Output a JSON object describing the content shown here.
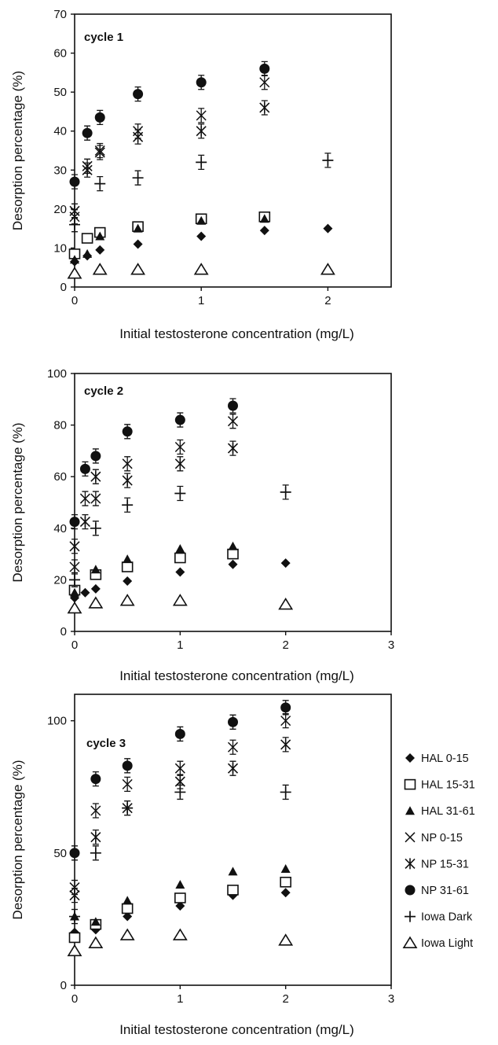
{
  "chart_data": [
    {
      "type": "scatter",
      "title": "cycle 1",
      "xlabel": "Initial testosterone concentration (mg/L)",
      "ylabel": "Desorption percentage (%)",
      "xlim": [
        0,
        2.5
      ],
      "ylim": [
        0,
        70
      ],
      "xticks": [
        0,
        1,
        2
      ],
      "yticks": [
        0,
        10,
        20,
        30,
        40,
        50,
        60,
        70
      ],
      "grid": false,
      "series": [
        {
          "name": "HAL 0-15",
          "x": [
            0,
            0.1,
            0.2,
            0.5,
            1,
            1.5,
            2
          ],
          "y": [
            6.5,
            8,
            9.5,
            11,
            13,
            14.5,
            15
          ]
        },
        {
          "name": "HAL 15-31",
          "x": [
            0,
            0.1,
            0.2,
            0.5,
            1,
            1.5
          ],
          "y": [
            8.5,
            12.5,
            14,
            15.5,
            17.5,
            18
          ]
        },
        {
          "name": "HAL 31-61",
          "x": [
            0,
            0.1,
            0.2,
            0.5,
            1,
            1.5
          ],
          "y": [
            7,
            8.5,
            13,
            15,
            17,
            17.5
          ]
        },
        {
          "name": "NP 0-15",
          "x": [
            0,
            0.1,
            0.2,
            0.5,
            1,
            1.5
          ],
          "y": [
            18,
            31,
            35,
            40,
            44,
            52.5
          ]
        },
        {
          "name": "NP 15-31",
          "x": [
            0,
            0.1,
            0.2,
            0.5,
            1,
            1.5
          ],
          "y": [
            19.5,
            30,
            34.5,
            38.5,
            40,
            46
          ]
        },
        {
          "name": "NP 31-61",
          "x": [
            0,
            0.1,
            0.2,
            0.5,
            1,
            1.5
          ],
          "y": [
            27,
            39.5,
            43.5,
            49.5,
            52.5,
            56
          ]
        },
        {
          "name": "Iowa Dark",
          "x": [
            0,
            0.2,
            0.5,
            1,
            2
          ],
          "y": [
            16,
            26.5,
            28,
            32,
            32.5
          ]
        },
        {
          "name": "Iowa Light",
          "x": [
            0,
            0.2,
            0.5,
            1,
            2
          ],
          "y": [
            3.5,
            4.5,
            4.5,
            4.5,
            4.5
          ]
        }
      ]
    },
    {
      "type": "scatter",
      "title": "cycle 2",
      "xlabel": "Initial testosterone concentration (mg/L)",
      "ylabel": "Desorption percentage (%)",
      "xlim": [
        0,
        3
      ],
      "ylim": [
        0,
        100
      ],
      "xticks": [
        0,
        1,
        2,
        3
      ],
      "yticks": [
        0,
        20,
        40,
        60,
        80,
        100
      ],
      "grid": false,
      "series": [
        {
          "name": "HAL 0-15",
          "x": [
            0,
            0.1,
            0.2,
            0.5,
            1,
            1.5,
            2
          ],
          "y": [
            13,
            15,
            16.5,
            19.5,
            23,
            26,
            26.5
          ]
        },
        {
          "name": "HAL 15-31",
          "x": [
            0,
            0.2,
            0.5,
            1,
            1.5
          ],
          "y": [
            16,
            22,
            25,
            28.5,
            30
          ]
        },
        {
          "name": "HAL 31-61",
          "x": [
            0,
            0.2,
            0.5,
            1,
            1.5
          ],
          "y": [
            15,
            24,
            28,
            32,
            33
          ]
        },
        {
          "name": "NP 0-15",
          "x": [
            0,
            0.1,
            0.2,
            0.5,
            1,
            1.5
          ],
          "y": [
            25,
            51.5,
            51.5,
            65,
            71.5,
            81.5
          ]
        },
        {
          "name": "NP 15-31",
          "x": [
            0,
            0.1,
            0.2,
            0.5,
            1,
            1.5
          ],
          "y": [
            33,
            42.5,
            60,
            58.5,
            65,
            71
          ]
        },
        {
          "name": "NP 31-61",
          "x": [
            0,
            0.1,
            0.2,
            0.5,
            1,
            1.5
          ],
          "y": [
            42.5,
            63,
            68,
            77.5,
            82,
            87.5
          ]
        },
        {
          "name": "Iowa Dark",
          "x": [
            0,
            0.2,
            0.5,
            1,
            2
          ],
          "y": [
            20,
            40,
            49,
            53.5,
            54
          ]
        },
        {
          "name": "Iowa Light",
          "x": [
            0,
            0.2,
            0.5,
            1,
            2
          ],
          "y": [
            9,
            11,
            12,
            12,
            10.5
          ]
        }
      ]
    },
    {
      "type": "scatter",
      "title": "cycle 3",
      "xlabel": "Initial testosterone concentration (mg/L)",
      "ylabel": "Desorption percentage (%)",
      "xlim": [
        0,
        3
      ],
      "ylim": [
        0,
        110
      ],
      "xticks": [
        0,
        1,
        2,
        3
      ],
      "yticks": [
        0,
        50,
        100
      ],
      "grid": false,
      "legend_position": "right",
      "series": [
        {
          "name": "HAL 0-15",
          "x": [
            0,
            0.2,
            0.5,
            1,
            1.5,
            2
          ],
          "y": [
            20,
            21,
            26,
            30,
            34,
            35
          ]
        },
        {
          "name": "HAL 15-31",
          "x": [
            0,
            0.2,
            0.5,
            1,
            1.5,
            2
          ],
          "y": [
            18,
            23,
            29,
            33,
            36,
            39
          ]
        },
        {
          "name": "HAL 31-61",
          "x": [
            0,
            0.2,
            0.5,
            1,
            1.5,
            2
          ],
          "y": [
            26,
            24,
            32,
            38,
            43,
            44
          ]
        },
        {
          "name": "NP 0-15",
          "x": [
            0,
            0.2,
            0.5,
            1,
            1.5,
            2
          ],
          "y": [
            37,
            66,
            76,
            82,
            90,
            100
          ]
        },
        {
          "name": "NP 15-31",
          "x": [
            0,
            0.2,
            0.5,
            1,
            1.5,
            2
          ],
          "y": [
            34,
            56,
            67,
            77,
            82,
            91
          ]
        },
        {
          "name": "NP 31-61",
          "x": [
            0,
            0.2,
            0.5,
            1,
            1.5,
            2
          ],
          "y": [
            50,
            78,
            83,
            95,
            99.5,
            105
          ]
        },
        {
          "name": "Iowa Dark",
          "x": [
            0,
            0.2,
            0.5,
            1,
            2
          ],
          "y": [
            26,
            50,
            67,
            73,
            73
          ]
        },
        {
          "name": "Iowa Light",
          "x": [
            0,
            0.2,
            0.5,
            1,
            2
          ],
          "y": [
            13,
            16,
            19,
            19,
            17
          ]
        }
      ]
    }
  ],
  "legend": [
    {
      "label": "HAL 0-15",
      "icon": "filled-diamond-icon"
    },
    {
      "label": "HAL 15-31",
      "icon": "open-square-icon"
    },
    {
      "label": "HAL 31-61",
      "icon": "filled-triangle-icon"
    },
    {
      "label": "NP 0-15",
      "icon": "x-cross-icon"
    },
    {
      "label": "NP 15-31",
      "icon": "asterisk-icon"
    },
    {
      "label": "NP 31-61",
      "icon": "filled-circle-icon"
    },
    {
      "label": "Iowa Dark",
      "icon": "plus-icon"
    },
    {
      "label": "Iowa Light",
      "icon": "open-triangle-icon"
    }
  ],
  "colors": {
    "ink": "#111111",
    "background": "#ffffff"
  }
}
